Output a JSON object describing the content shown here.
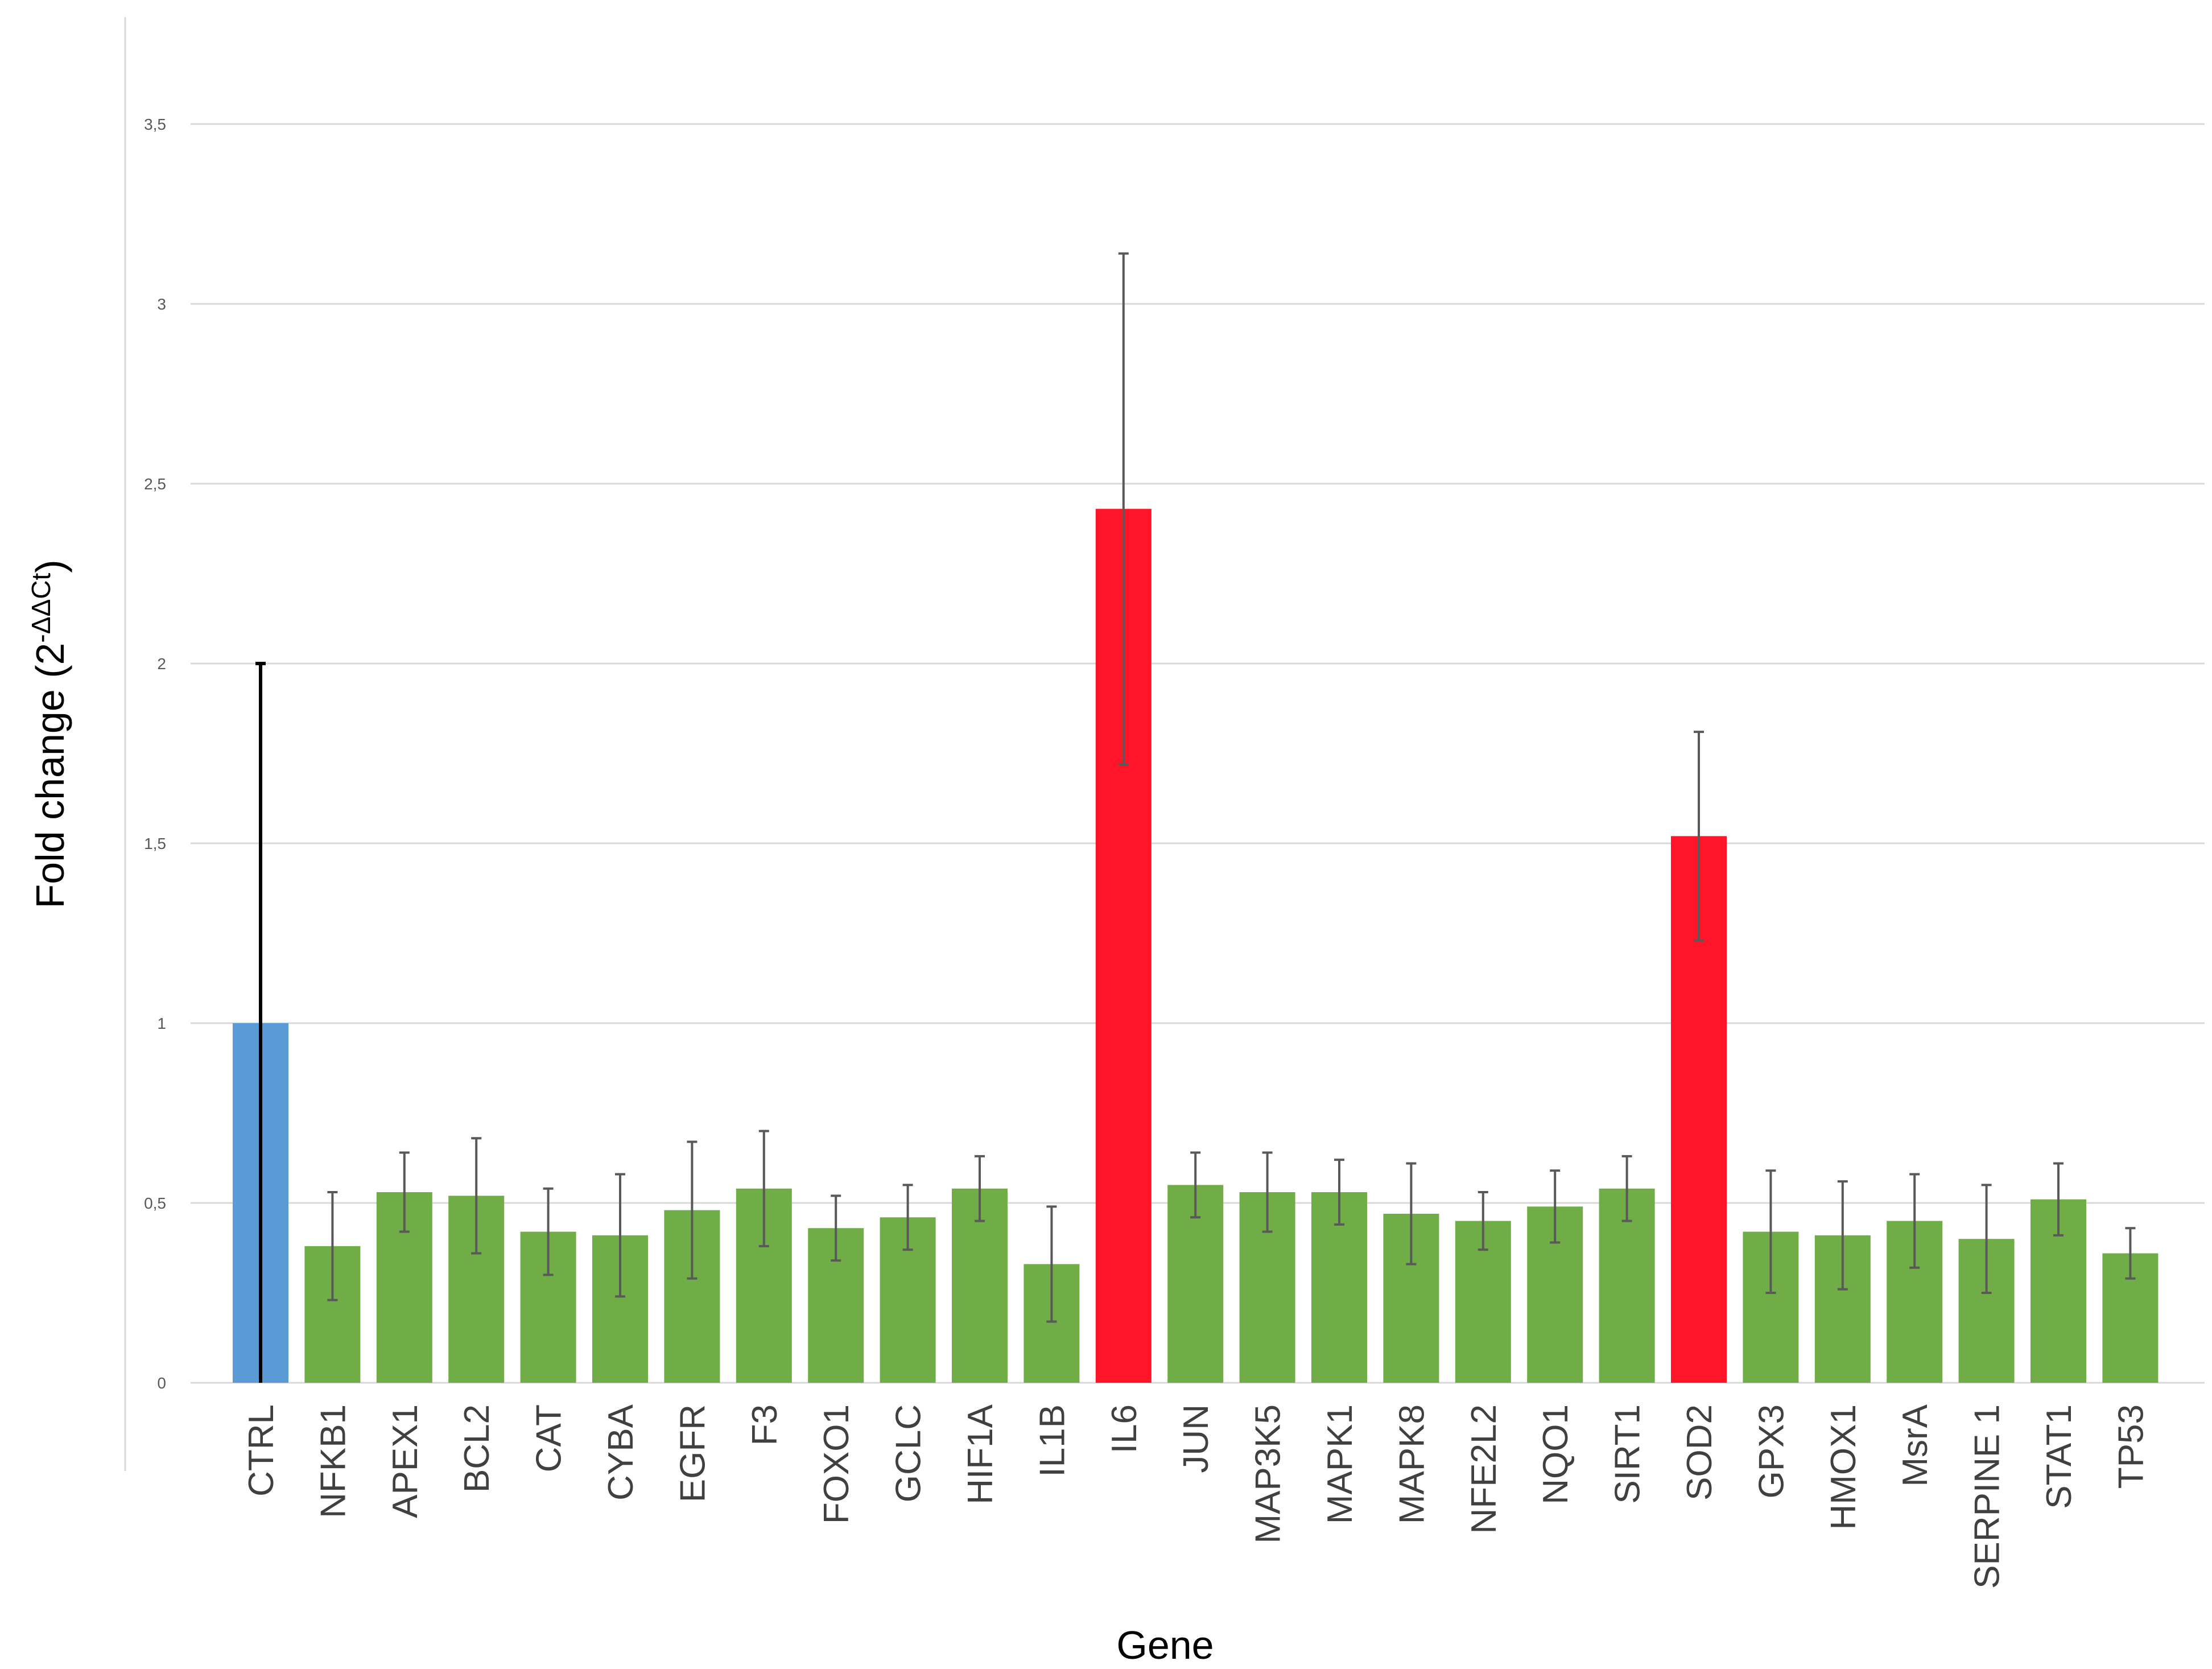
{
  "chart_data": {
    "type": "bar",
    "title": "",
    "xlabel": "Gene",
    "ylabel": {
      "main": "Fold change (2",
      "superscript": "-ΔΔCt",
      "close": ")"
    },
    "ylim": [
      0,
      3.5
    ],
    "y_ticks": [
      {
        "value": 0,
        "label": "0"
      },
      {
        "value": 0.5,
        "label": "0,5"
      },
      {
        "value": 1,
        "label": "1"
      },
      {
        "value": 1.5,
        "label": "1,5"
      },
      {
        "value": 2,
        "label": "2"
      },
      {
        "value": 2.5,
        "label": "2,5"
      },
      {
        "value": 3,
        "label": "3"
      },
      {
        "value": 3.5,
        "label": "3,5"
      }
    ],
    "grid": true,
    "legend": "none",
    "categories": [
      "CTRL",
      "NFKB1",
      "APEX1",
      "BCL2",
      "CAT",
      "CYBA",
      "EGFR",
      "F3",
      "FOXO1",
      "GCLC",
      "HIF1A",
      "IL1B",
      "IL6",
      "JUN",
      "MAP3K5",
      "MAPK1",
      "MAPK8",
      "NFE2L2",
      "NQO1",
      "SIRT1",
      "SOD2",
      "GPX3",
      "HMOX1",
      "MsrA",
      "SERPINE 1",
      "STAT1",
      "TP53"
    ],
    "values": [
      1.0,
      0.38,
      0.53,
      0.52,
      0.42,
      0.41,
      0.48,
      0.54,
      0.43,
      0.46,
      0.54,
      0.33,
      2.43,
      0.55,
      0.53,
      0.53,
      0.47,
      0.45,
      0.49,
      0.54,
      1.52,
      0.42,
      0.41,
      0.45,
      0.4,
      0.51,
      0.36
    ],
    "error": [
      1.0,
      0.15,
      0.11,
      0.16,
      0.12,
      0.17,
      0.19,
      0.16,
      0.09,
      0.09,
      0.09,
      0.16,
      0.71,
      0.09,
      0.11,
      0.09,
      0.14,
      0.08,
      0.1,
      0.09,
      0.29,
      0.17,
      0.15,
      0.13,
      0.15,
      0.1,
      0.07
    ],
    "bar_colors": [
      "#5b9bd5",
      "#70ad47",
      "#70ad47",
      "#70ad47",
      "#70ad47",
      "#70ad47",
      "#70ad47",
      "#70ad47",
      "#70ad47",
      "#70ad47",
      "#70ad47",
      "#70ad47",
      "#ff1428",
      "#70ad47",
      "#70ad47",
      "#70ad47",
      "#70ad47",
      "#70ad47",
      "#70ad47",
      "#70ad47",
      "#ff1428",
      "#70ad47",
      "#70ad47",
      "#70ad47",
      "#70ad47",
      "#70ad47",
      "#70ad47"
    ],
    "error_bar_colors": [
      "#000000",
      "#595959",
      "#595959",
      "#595959",
      "#595959",
      "#595959",
      "#595959",
      "#595959",
      "#595959",
      "#595959",
      "#595959",
      "#595959",
      "#595959",
      "#595959",
      "#595959",
      "#595959",
      "#595959",
      "#595959",
      "#595959",
      "#595959",
      "#595959",
      "#595959",
      "#595959",
      "#595959",
      "#595959",
      "#595959",
      "#595959"
    ],
    "gridline_color": "#d9d9d9"
  }
}
